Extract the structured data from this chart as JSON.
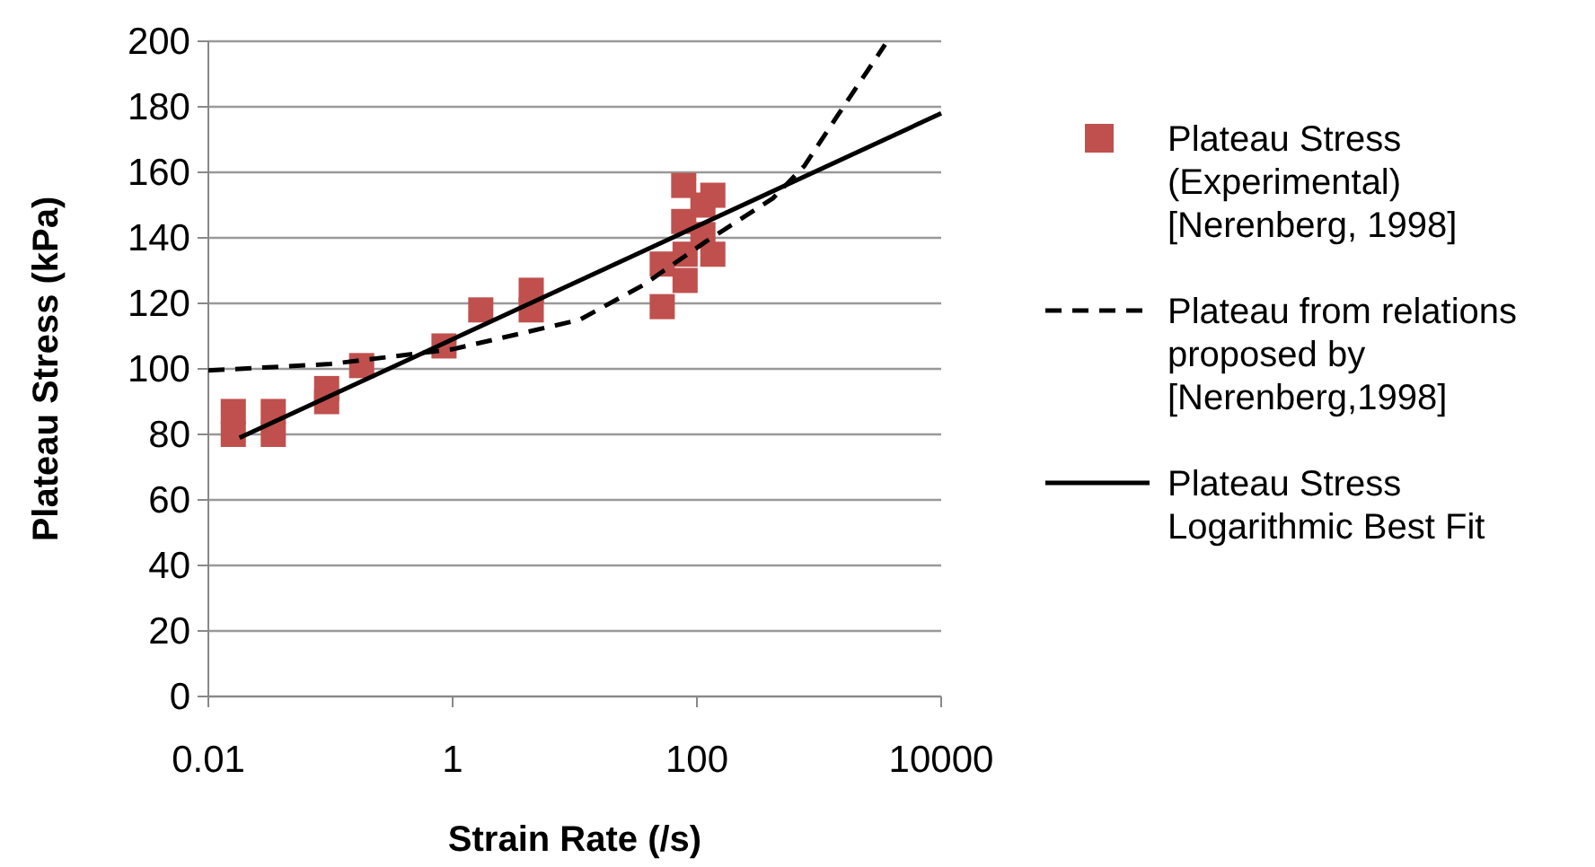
{
  "chart_data": {
    "type": "scatter",
    "xlabel": "Strain Rate (/s)",
    "ylabel": "Plateau Stress (kPa)",
    "log": "x",
    "xlim": [
      0.01,
      10000
    ],
    "xticks": [
      0.01,
      1,
      100,
      10000
    ],
    "ylim": [
      0,
      200
    ],
    "yticks": [
      0,
      20,
      40,
      60,
      80,
      100,
      120,
      140,
      160,
      180,
      200
    ],
    "grid": "y",
    "legend": "right",
    "series": [
      {
        "name": "Plateau Stress (Experimental) [Nerenberg, 1998]",
        "type": "scatter",
        "marker": "square",
        "color": "#c0504d",
        "x": [
          0.016,
          0.016,
          0.034,
          0.034,
          0.093,
          0.093,
          0.18,
          0.85,
          1.7,
          4.4,
          4.4,
          52,
          52,
          78,
          78,
          80,
          80,
          112,
          112,
          135,
          135
        ],
        "values": [
          87,
          80,
          87,
          80,
          94,
          90,
          101,
          107,
          118,
          124,
          118,
          119,
          132,
          156,
          145,
          135,
          127,
          150,
          141,
          153,
          135
        ]
      },
      {
        "name": "Plateau from relations proposed by [Nerenberg,1998]",
        "type": "line",
        "line_style": "dashed",
        "marker": "none",
        "color": "#000000",
        "x": [
          0.01,
          0.1,
          1,
          11,
          36,
          120,
          417,
          760,
          1400,
          3470
        ],
        "values": [
          99.5,
          101.5,
          106,
          115,
          125.5,
          139,
          152,
          162,
          177,
          199
        ]
      },
      {
        "name": "Plateau Stress Logarithmic Best Fit",
        "type": "line",
        "line_style": "solid",
        "marker": "none",
        "color": "#000000",
        "x": [
          0.018,
          10000
        ],
        "values": [
          79,
          178
        ]
      }
    ]
  }
}
